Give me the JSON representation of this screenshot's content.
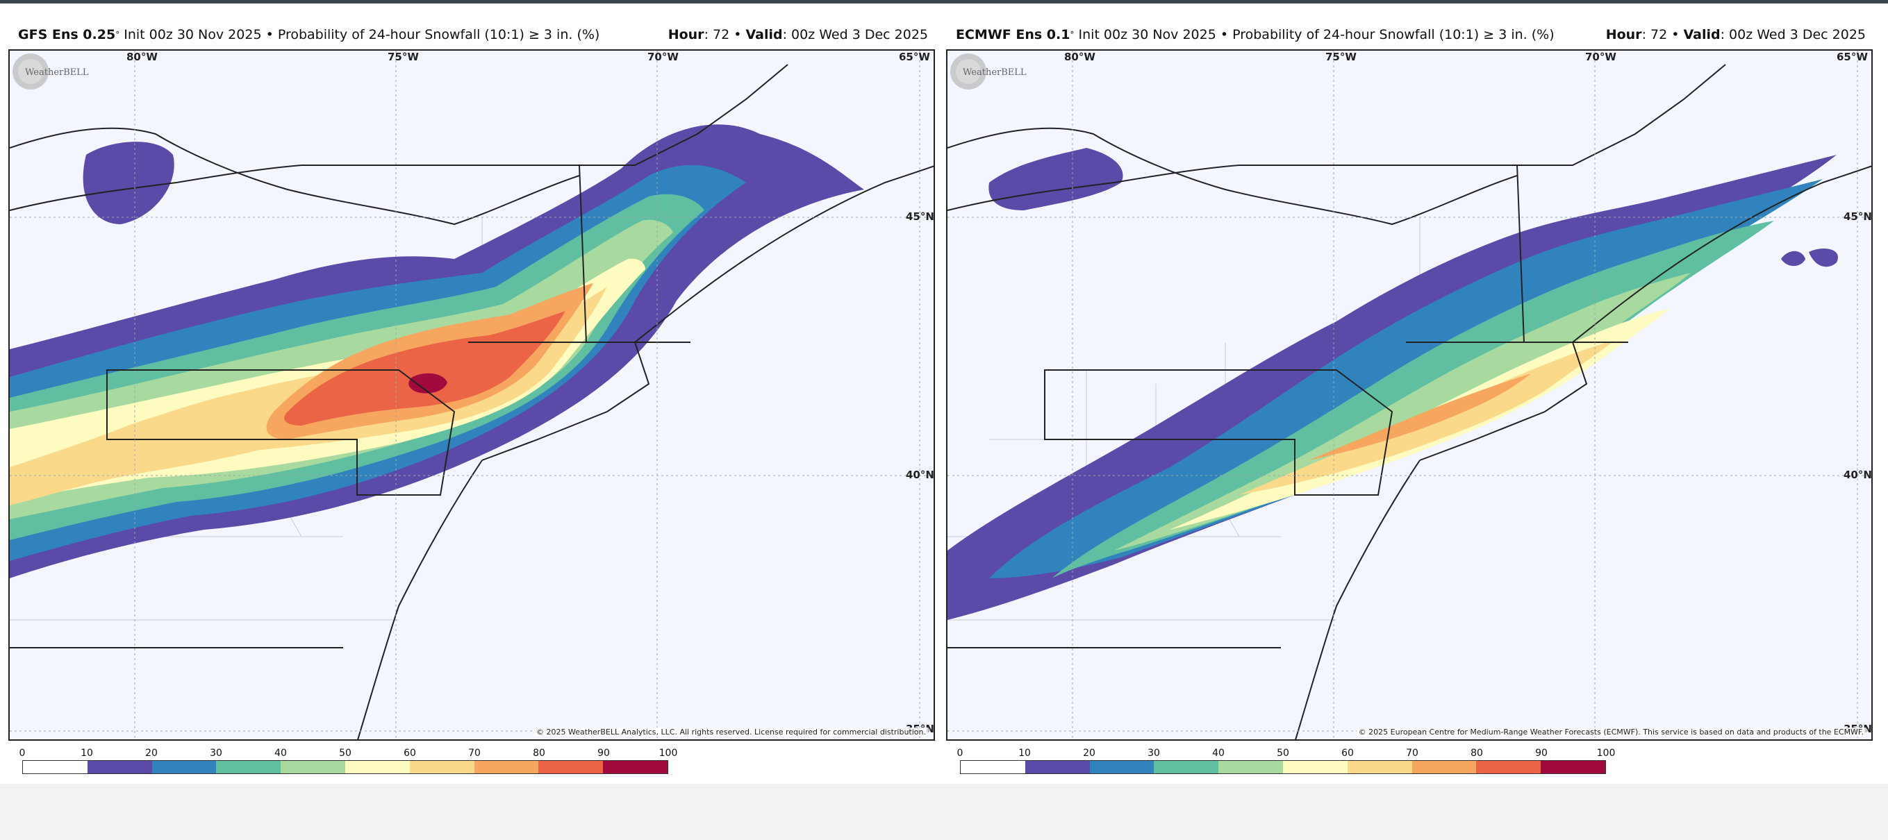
{
  "colors": {
    "map_background": "#f3f6ff",
    "land_lines": "#222222",
    "county_lines": "#c9ccd6"
  },
  "panels": [
    {
      "model": "GFS Ens 0.25",
      "model_degree": "°",
      "description": "Init 00z 30 Nov 2025 • Probability of 24-hour Snowfall (10:1) ≥ 3 in. (%)",
      "hour_label": "Hour",
      "hour_value": ": 72 •",
      "valid_label": "Valid",
      "valid_value": ": 00z Wed 3 Dec 2025",
      "lon_labels": [
        "80°W",
        "75°W",
        "70°W",
        "65°W"
      ],
      "lat_labels": [
        "45°N",
        "40°N",
        "35°N"
      ],
      "copyright": "© 2025 WeatherBELL Analytics, LLC. All rights reserved. License required for commercial distribution.",
      "logo_text": "WeatherBELL"
    },
    {
      "model": "ECMWF Ens 0.1",
      "model_degree": "°",
      "description": "Init 00z 30 Nov 2025 • Probability of 24-hour Snowfall (10:1) ≥ 3 in. (%)",
      "hour_label": "Hour",
      "hour_value": ": 72 •",
      "valid_label": "Valid",
      "valid_value": ": 00z Wed 3 Dec 2025",
      "lon_labels": [
        "80°W",
        "75°W",
        "70°W",
        "65°W"
      ],
      "lat_labels": [
        "45°N",
        "40°N",
        "35°N"
      ],
      "copyright": "© 2025 European Centre for Medium-Range Weather Forecasts (ECMWF). This service is based on data and products of the ECMWF.",
      "logo_text": "WeatherBELL"
    }
  ],
  "colorbar": {
    "ticks": [
      "0",
      "10",
      "20",
      "30",
      "40",
      "50",
      "60",
      "70",
      "80",
      "90",
      "100"
    ],
    "colors": [
      "#ffffff",
      "#5b4aa8",
      "#3183bd",
      "#5fbfa0",
      "#a8daa0",
      "#fdfbc0",
      "#fbd98a",
      "#f6a65e",
      "#ec6446",
      "#a2093d"
    ]
  }
}
